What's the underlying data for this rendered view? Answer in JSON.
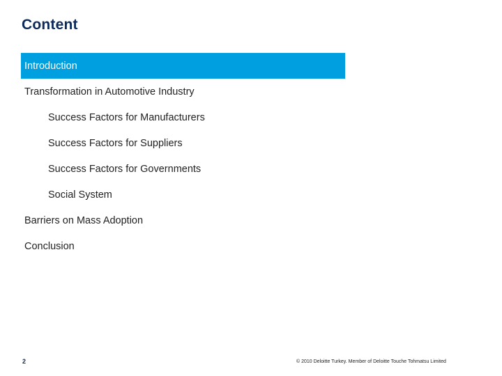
{
  "slide": {
    "title": "Content",
    "page_number": "2",
    "copyright": "© 2010 Deloitte Turkey. Member of Deloitte Touche Tohmatsu Limited"
  },
  "toc": {
    "active_color": "#009fdf",
    "items": [
      {
        "label": "Introduction",
        "level": 1,
        "active": true
      },
      {
        "label": "Transformation in Automotive Industry",
        "level": 1,
        "active": false
      },
      {
        "label": "Success Factors for Manufacturers",
        "level": 2,
        "active": false
      },
      {
        "label": "Success Factors for Suppliers",
        "level": 2,
        "active": false
      },
      {
        "label": "Success Factors for Governments",
        "level": 2,
        "active": false
      },
      {
        "label": "Social System",
        "level": 2,
        "active": false
      },
      {
        "label": "Barriers on Mass Adoption",
        "level": 1,
        "active": false
      },
      {
        "label": "Conclusion",
        "level": 1,
        "active": false
      }
    ]
  }
}
